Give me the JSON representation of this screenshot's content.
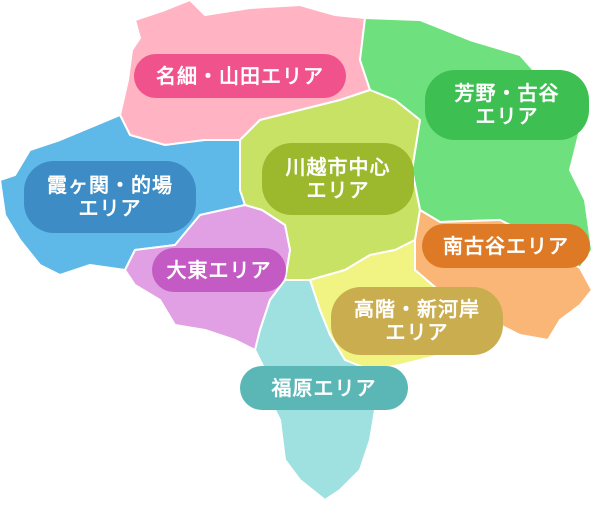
{
  "map": {
    "areas": [
      {
        "id": "nahoso",
        "lines": [
          "名細・山田エリア"
        ],
        "region_color": "#ffb3c3",
        "label_color": "#f0528b"
      },
      {
        "id": "yoshino",
        "lines": [
          "芳野・古谷",
          "エリア"
        ],
        "region_color": "#6ee07e",
        "label_color": "#3ebf52"
      },
      {
        "id": "kawagoe",
        "lines": [
          "川越市中心",
          "エリア"
        ],
        "region_color": "#c7e264",
        "label_color": "#9cb92e"
      },
      {
        "id": "kasumigaseki",
        "lines": [
          "霞ヶ関・的場",
          "エリア"
        ],
        "region_color": "#5eb8e8",
        "label_color": "#3d8cc5"
      },
      {
        "id": "minamifurutani",
        "lines": [
          "南古谷エリア"
        ],
        "region_color": "#f9b676",
        "label_color": "#de7a25"
      },
      {
        "id": "daito",
        "lines": [
          "大東エリア"
        ],
        "region_color": "#e2a0e4",
        "label_color": "#c45bc5"
      },
      {
        "id": "takashina",
        "lines": [
          "高階・新河岸",
          "エリア"
        ],
        "region_color": "#f1f482",
        "label_color": "#c9ad4f"
      },
      {
        "id": "fukuhara",
        "lines": [
          "福原エリア"
        ],
        "region_color": "#9fe0e0",
        "label_color": "#5bb6b6"
      }
    ]
  }
}
